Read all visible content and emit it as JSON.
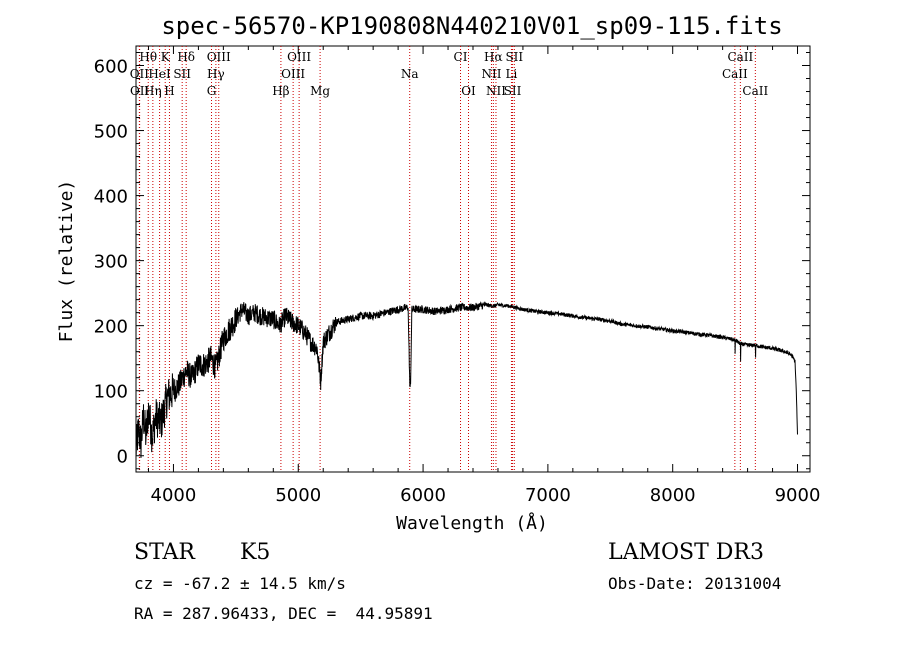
{
  "chart_data": {
    "type": "line",
    "title": "spec-56570-KP190808N440210V01_sp09-115.fits",
    "xlabel": "Wavelength (Å)",
    "ylabel": "Flux (relative)",
    "xlim": [
      3700,
      9100
    ],
    "ylim": [
      -25,
      630
    ],
    "xticks": [
      4000,
      5000,
      6000,
      7000,
      8000,
      9000
    ],
    "yticks": [
      0,
      100,
      200,
      300,
      400,
      500,
      600
    ],
    "x_tick_labels": [
      "4000",
      "5000",
      "6000",
      "7000",
      "8000",
      "9000"
    ],
    "y_tick_labels": [
      "0",
      "100",
      "200",
      "300",
      "400",
      "500",
      "600"
    ],
    "series": [
      {
        "name": "flux",
        "color": "#000000",
        "anchors": [
          [
            3700,
            10
          ],
          [
            3720,
            40
          ],
          [
            3740,
            20
          ],
          [
            3760,
            60
          ],
          [
            3780,
            30
          ],
          [
            3800,
            70
          ],
          [
            3830,
            30
          ],
          [
            3860,
            60
          ],
          [
            3900,
            50
          ],
          [
            3950,
            90
          ],
          [
            4000,
            100
          ],
          [
            4050,
            110
          ],
          [
            4100,
            130
          ],
          [
            4150,
            120
          ],
          [
            4200,
            140
          ],
          [
            4250,
            140
          ],
          [
            4300,
            150
          ],
          [
            4340,
            135
          ],
          [
            4400,
            180
          ],
          [
            4450,
            195
          ],
          [
            4500,
            210
          ],
          [
            4550,
            225
          ],
          [
            4600,
            215
          ],
          [
            4650,
            220
          ],
          [
            4700,
            215
          ],
          [
            4750,
            212
          ],
          [
            4800,
            210
          ],
          [
            4850,
            200
          ],
          [
            4900,
            215
          ],
          [
            4950,
            205
          ],
          [
            5000,
            200
          ],
          [
            5050,
            190
          ],
          [
            5100,
            175
          ],
          [
            5150,
            165
          ],
          [
            5180,
            115
          ],
          [
            5200,
            175
          ],
          [
            5250,
            190
          ],
          [
            5300,
            205
          ],
          [
            5400,
            210
          ],
          [
            5500,
            215
          ],
          [
            5600,
            215
          ],
          [
            5700,
            220
          ],
          [
            5800,
            225
          ],
          [
            5880,
            228
          ],
          [
            5895,
            100
          ],
          [
            5900,
            110
          ],
          [
            5910,
            225
          ],
          [
            6000,
            225
          ],
          [
            6100,
            222
          ],
          [
            6200,
            225
          ],
          [
            6300,
            228
          ],
          [
            6400,
            228
          ],
          [
            6500,
            232
          ],
          [
            6563,
            230
          ],
          [
            6600,
            232
          ],
          [
            6700,
            230
          ],
          [
            6800,
            225
          ],
          [
            6900,
            222
          ],
          [
            7000,
            220
          ],
          [
            7100,
            218
          ],
          [
            7200,
            215
          ],
          [
            7300,
            212
          ],
          [
            7400,
            210
          ],
          [
            7500,
            207
          ],
          [
            7600,
            202
          ],
          [
            7700,
            200
          ],
          [
            7800,
            198
          ],
          [
            7900,
            195
          ],
          [
            8000,
            192
          ],
          [
            8100,
            190
          ],
          [
            8200,
            187
          ],
          [
            8300,
            185
          ],
          [
            8400,
            182
          ],
          [
            8498,
            178
          ],
          [
            8500,
            155
          ],
          [
            8502,
            178
          ],
          [
            8542,
            172
          ],
          [
            8544,
            145
          ],
          [
            8546,
            172
          ],
          [
            8600,
            170
          ],
          [
            8662,
            170
          ],
          [
            8664,
            148
          ],
          [
            8666,
            170
          ],
          [
            8700,
            168
          ],
          [
            8800,
            165
          ],
          [
            8900,
            160
          ],
          [
            8950,
            155
          ],
          [
            8980,
            145
          ],
          [
            8990,
            100
          ],
          [
            9000,
            30
          ]
        ]
      }
    ],
    "spectral_lines": [
      {
        "label": "Hθ",
        "wave": 3798,
        "row": 1
      },
      {
        "label": "K",
        "wave": 3934,
        "row": 1
      },
      {
        "label": "Hδ",
        "wave": 4102,
        "row": 1
      },
      {
        "label": "OIII",
        "wave": 4363,
        "row": 1
      },
      {
        "label": "OIII",
        "wave": 5007,
        "row": 1
      },
      {
        "label": "CI",
        "wave": 6300,
        "row": 1
      },
      {
        "label": "Hα",
        "wave": 6563,
        "row": 1
      },
      {
        "label": "SII",
        "wave": 6731,
        "row": 1
      },
      {
        "label": "CaII",
        "wave": 8542,
        "row": 1
      },
      {
        "label": "OII",
        "wave": 3727,
        "row": 2
      },
      {
        "label": "HeI",
        "wave": 3889,
        "row": 2
      },
      {
        "label": "SII",
        "wave": 4070,
        "row": 2
      },
      {
        "label": "Hγ",
        "wave": 4340,
        "row": 2
      },
      {
        "label": "OIII",
        "wave": 4959,
        "row": 2
      },
      {
        "label": "Na",
        "wave": 5893,
        "row": 2
      },
      {
        "label": "NII",
        "wave": 6548,
        "row": 2
      },
      {
        "label": "Li",
        "wave": 6708,
        "row": 2
      },
      {
        "label": "CaII",
        "wave": 8498,
        "row": 2
      },
      {
        "label": "OII",
        "wave": 3729,
        "row": 3
      },
      {
        "label": "Hη",
        "wave": 3835,
        "row": 3
      },
      {
        "label": "H",
        "wave": 3968,
        "row": 3
      },
      {
        "label": "G",
        "wave": 4305,
        "row": 3
      },
      {
        "label": "Hβ",
        "wave": 4861,
        "row": 3
      },
      {
        "label": "Mg",
        "wave": 5175,
        "row": 3
      },
      {
        "label": "OI",
        "wave": 6364,
        "row": 3
      },
      {
        "label": "NII",
        "wave": 6584,
        "row": 3
      },
      {
        "label": "SII",
        "wave": 6717,
        "row": 3
      },
      {
        "label": "CaII",
        "wave": 8662,
        "row": 3
      }
    ],
    "line_marker_color": "#cc0000"
  },
  "info": {
    "class": "STAR",
    "subclass": "K5",
    "survey": "LAMOST DR3",
    "cz": "cz = -67.2 ± 14.5 km/s",
    "obs_date": "Obs-Date: 20131004",
    "coords": "RA = 287.96433, DEC =  44.95891"
  }
}
